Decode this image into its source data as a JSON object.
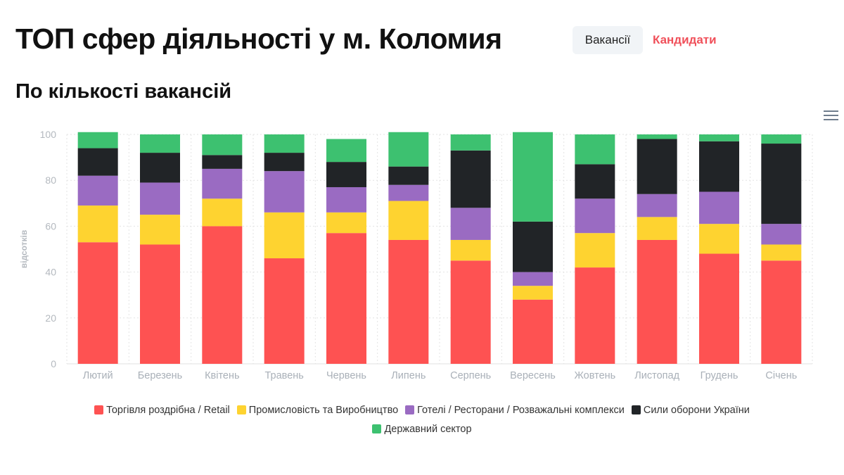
{
  "header": {
    "title": "ТОП сфер діяльності у м. Коломия",
    "tabs": [
      {
        "label": "Вакансії",
        "active": true
      },
      {
        "label": "Кандидати",
        "active": false
      }
    ],
    "subtitle": "По кількості вакансій",
    "menu_icon": "hamburger-menu-icon"
  },
  "chart_data": {
    "type": "bar",
    "stacked": true,
    "title": "",
    "xlabel": "",
    "ylabel": "відсотків",
    "ylim": [
      0,
      100
    ],
    "yticks": [
      0,
      20,
      40,
      60,
      80,
      100
    ],
    "grid": true,
    "legend_placement": "bottom",
    "categories": [
      "Лютий",
      "Березень",
      "Квітень",
      "Травень",
      "Червень",
      "Липень",
      "Серпень",
      "Вересень",
      "Жовтень",
      "Листопад",
      "Грудень",
      "Січень"
    ],
    "series": [
      {
        "name": "Торгівля роздрібна / Retail",
        "color": "#fe5252",
        "values": [
          53,
          52,
          60,
          46,
          57,
          54,
          45,
          28,
          42,
          54,
          48,
          45
        ]
      },
      {
        "name": "Промисловість та Виробництво",
        "color": "#fed330",
        "values": [
          16,
          13,
          12,
          20,
          9,
          17,
          9,
          6,
          15,
          10,
          13,
          7
        ]
      },
      {
        "name": "Готелі / Ресторани / Розважальні комплекси",
        "color": "#9a6bc2",
        "values": [
          13,
          14,
          13,
          18,
          11,
          7,
          14,
          6,
          15,
          10,
          14,
          9
        ]
      },
      {
        "name": "Сили оборони України",
        "color": "#212427",
        "values": [
          12,
          13,
          6,
          8,
          11,
          8,
          25,
          22,
          15,
          24,
          22,
          35
        ]
      },
      {
        "name": "Державний сектор",
        "color": "#3dc170",
        "values": [
          7,
          8,
          9,
          8,
          10,
          15,
          7,
          39,
          13,
          2,
          3,
          4
        ]
      }
    ]
  }
}
